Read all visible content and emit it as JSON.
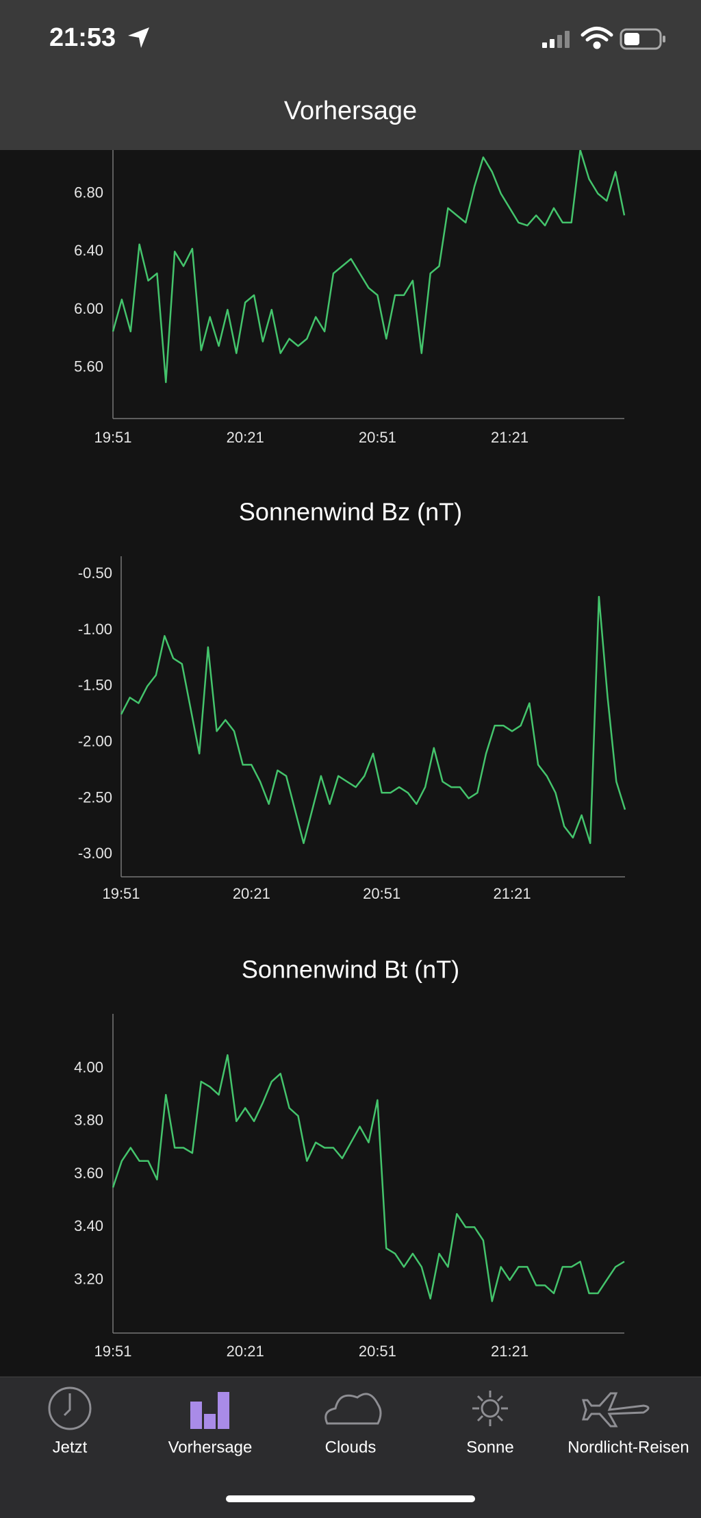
{
  "status_bar": {
    "time": "21:53"
  },
  "header": {
    "title": "Vorhersage"
  },
  "chart_data": [
    {
      "type": "line",
      "color": "#44c46c",
      "x": [
        "19:51",
        "19:53",
        "19:55",
        "19:57",
        "19:59",
        "20:01",
        "20:03",
        "20:05",
        "20:07",
        "20:09",
        "20:11",
        "20:13",
        "20:15",
        "20:17",
        "20:19",
        "20:21",
        "20:23",
        "20:25",
        "20:27",
        "20:29",
        "20:31",
        "20:33",
        "20:35",
        "20:37",
        "20:39",
        "20:41",
        "20:43",
        "20:45",
        "20:47",
        "20:49",
        "20:51",
        "20:53",
        "20:55",
        "20:57",
        "20:59",
        "21:01",
        "21:03",
        "21:05",
        "21:07",
        "21:09",
        "21:11",
        "21:13",
        "21:15",
        "21:17",
        "21:19",
        "21:21",
        "21:23",
        "21:25",
        "21:27",
        "21:29",
        "21:31",
        "21:33",
        "21:35",
        "21:37",
        "21:39",
        "21:41",
        "21:43",
        "21:45",
        "21:47"
      ],
      "values": [
        5.85,
        6.07,
        5.85,
        6.45,
        6.2,
        6.25,
        5.5,
        6.4,
        6.3,
        6.42,
        5.72,
        5.95,
        5.75,
        6.0,
        5.7,
        6.05,
        6.1,
        5.78,
        6.0,
        5.7,
        5.8,
        5.75,
        5.8,
        5.95,
        5.85,
        6.25,
        6.3,
        6.35,
        6.25,
        6.15,
        6.1,
        5.8,
        6.1,
        6.1,
        6.2,
        5.7,
        6.25,
        6.3,
        6.7,
        6.65,
        6.6,
        6.85,
        7.05,
        6.95,
        6.8,
        6.7,
        6.6,
        6.58,
        6.65,
        6.58,
        6.7,
        6.6,
        6.6,
        7.1,
        6.9,
        6.8,
        6.75,
        6.95,
        6.65
      ],
      "xlim": [
        "19:51",
        "21:47"
      ],
      "xticks": [
        "19:51",
        "20:21",
        "20:51",
        "21:21"
      ],
      "ylim": [
        5.25,
        7.1
      ],
      "yticks": [
        {
          "value": 5.6,
          "label": "5.60"
        },
        {
          "value": 6.0,
          "label": "6.00"
        },
        {
          "value": 6.4,
          "label": "6.40"
        },
        {
          "value": 6.8,
          "label": "6.80"
        }
      ]
    },
    {
      "type": "line",
      "title": "Sonnenwind Bz (nT)",
      "color": "#44c46c",
      "x": [
        "19:51",
        "19:53",
        "19:55",
        "19:57",
        "19:59",
        "20:01",
        "20:03",
        "20:05",
        "20:07",
        "20:09",
        "20:11",
        "20:13",
        "20:15",
        "20:17",
        "20:19",
        "20:21",
        "20:23",
        "20:25",
        "20:27",
        "20:29",
        "20:31",
        "20:33",
        "20:35",
        "20:37",
        "20:39",
        "20:41",
        "20:43",
        "20:45",
        "20:47",
        "20:49",
        "20:51",
        "20:53",
        "20:55",
        "20:57",
        "20:59",
        "21:01",
        "21:03",
        "21:05",
        "21:07",
        "21:09",
        "21:11",
        "21:13",
        "21:15",
        "21:17",
        "21:19",
        "21:21",
        "21:23",
        "21:25",
        "21:27",
        "21:29",
        "21:31",
        "21:33",
        "21:35",
        "21:37",
        "21:39",
        "21:41",
        "21:43",
        "21:45",
        "21:47"
      ],
      "values": [
        -1.75,
        -1.6,
        -1.65,
        -1.5,
        -1.4,
        -1.05,
        -1.25,
        -1.3,
        -1.7,
        -2.1,
        -1.15,
        -1.9,
        -1.8,
        -1.9,
        -2.2,
        -2.2,
        -2.35,
        -2.55,
        -2.25,
        -2.3,
        -2.6,
        -2.9,
        -2.6,
        -2.3,
        -2.55,
        -2.3,
        -2.35,
        -2.4,
        -2.3,
        -2.1,
        -2.45,
        -2.45,
        -2.4,
        -2.45,
        -2.55,
        -2.4,
        -2.05,
        -2.35,
        -2.4,
        -2.4,
        -2.5,
        -2.45,
        -2.1,
        -1.85,
        -1.85,
        -1.9,
        -1.85,
        -1.65,
        -2.2,
        -2.3,
        -2.45,
        -2.75,
        -2.85,
        -2.65,
        -2.9,
        -0.7,
        -1.6,
        -2.35,
        -2.6
      ],
      "xlim": [
        "19:51",
        "21:47"
      ],
      "xticks": [
        "19:51",
        "20:21",
        "20:51",
        "21:21"
      ],
      "ylim": [
        -3.2,
        -0.4
      ],
      "yticks": [
        {
          "value": -3.0,
          "label": "-3.00"
        },
        {
          "value": -2.5,
          "label": "-2.50"
        },
        {
          "value": -2.0,
          "label": "-2.00"
        },
        {
          "value": -1.5,
          "label": "-1.50"
        },
        {
          "value": -1.0,
          "label": "-1.00"
        },
        {
          "value": -0.5,
          "label": "-0.50"
        }
      ]
    },
    {
      "type": "line",
      "title": "Sonnenwind Bt (nT)",
      "color": "#44c46c",
      "x": [
        "19:51",
        "19:53",
        "19:55",
        "19:57",
        "19:59",
        "20:01",
        "20:03",
        "20:05",
        "20:07",
        "20:09",
        "20:11",
        "20:13",
        "20:15",
        "20:17",
        "20:19",
        "20:21",
        "20:23",
        "20:25",
        "20:27",
        "20:29",
        "20:31",
        "20:33",
        "20:35",
        "20:37",
        "20:39",
        "20:41",
        "20:43",
        "20:45",
        "20:47",
        "20:49",
        "20:51",
        "20:53",
        "20:55",
        "20:57",
        "20:59",
        "21:01",
        "21:03",
        "21:05",
        "21:07",
        "21:09",
        "21:11",
        "21:13",
        "21:15",
        "21:17",
        "21:19",
        "21:21",
        "21:23",
        "21:25",
        "21:27",
        "21:29",
        "21:31",
        "21:33",
        "21:35",
        "21:37",
        "21:39",
        "21:41",
        "21:43",
        "21:45",
        "21:47"
      ],
      "values": [
        3.55,
        3.65,
        3.7,
        3.65,
        3.65,
        3.58,
        3.9,
        3.7,
        3.7,
        3.68,
        3.95,
        3.93,
        3.9,
        4.05,
        3.8,
        3.85,
        3.8,
        3.87,
        3.95,
        3.98,
        3.85,
        3.82,
        3.65,
        3.72,
        3.7,
        3.7,
        3.66,
        3.72,
        3.78,
        3.72,
        3.88,
        3.32,
        3.3,
        3.25,
        3.3,
        3.25,
        3.13,
        3.3,
        3.25,
        3.45,
        3.4,
        3.4,
        3.35,
        3.12,
        3.25,
        3.2,
        3.25,
        3.25,
        3.18,
        3.18,
        3.15,
        3.25,
        3.25,
        3.27,
        3.15,
        3.15,
        3.2,
        3.25,
        3.27
      ],
      "xlim": [
        "19:51",
        "21:47"
      ],
      "xticks": [
        "19:51",
        "20:21",
        "20:51",
        "21:21"
      ],
      "ylim": [
        3.0,
        4.18
      ],
      "yticks": [
        {
          "value": 3.2,
          "label": "3.20"
        },
        {
          "value": 3.4,
          "label": "3.40"
        },
        {
          "value": 3.6,
          "label": "3.60"
        },
        {
          "value": 3.8,
          "label": "3.80"
        },
        {
          "value": 4.0,
          "label": "4.00"
        }
      ]
    }
  ],
  "tab_bar": {
    "tabs": [
      "Jetzt",
      "Vorhersage",
      "Clouds",
      "Sonne",
      "Nordlicht-Reisen"
    ],
    "active": "Vorhersage"
  }
}
